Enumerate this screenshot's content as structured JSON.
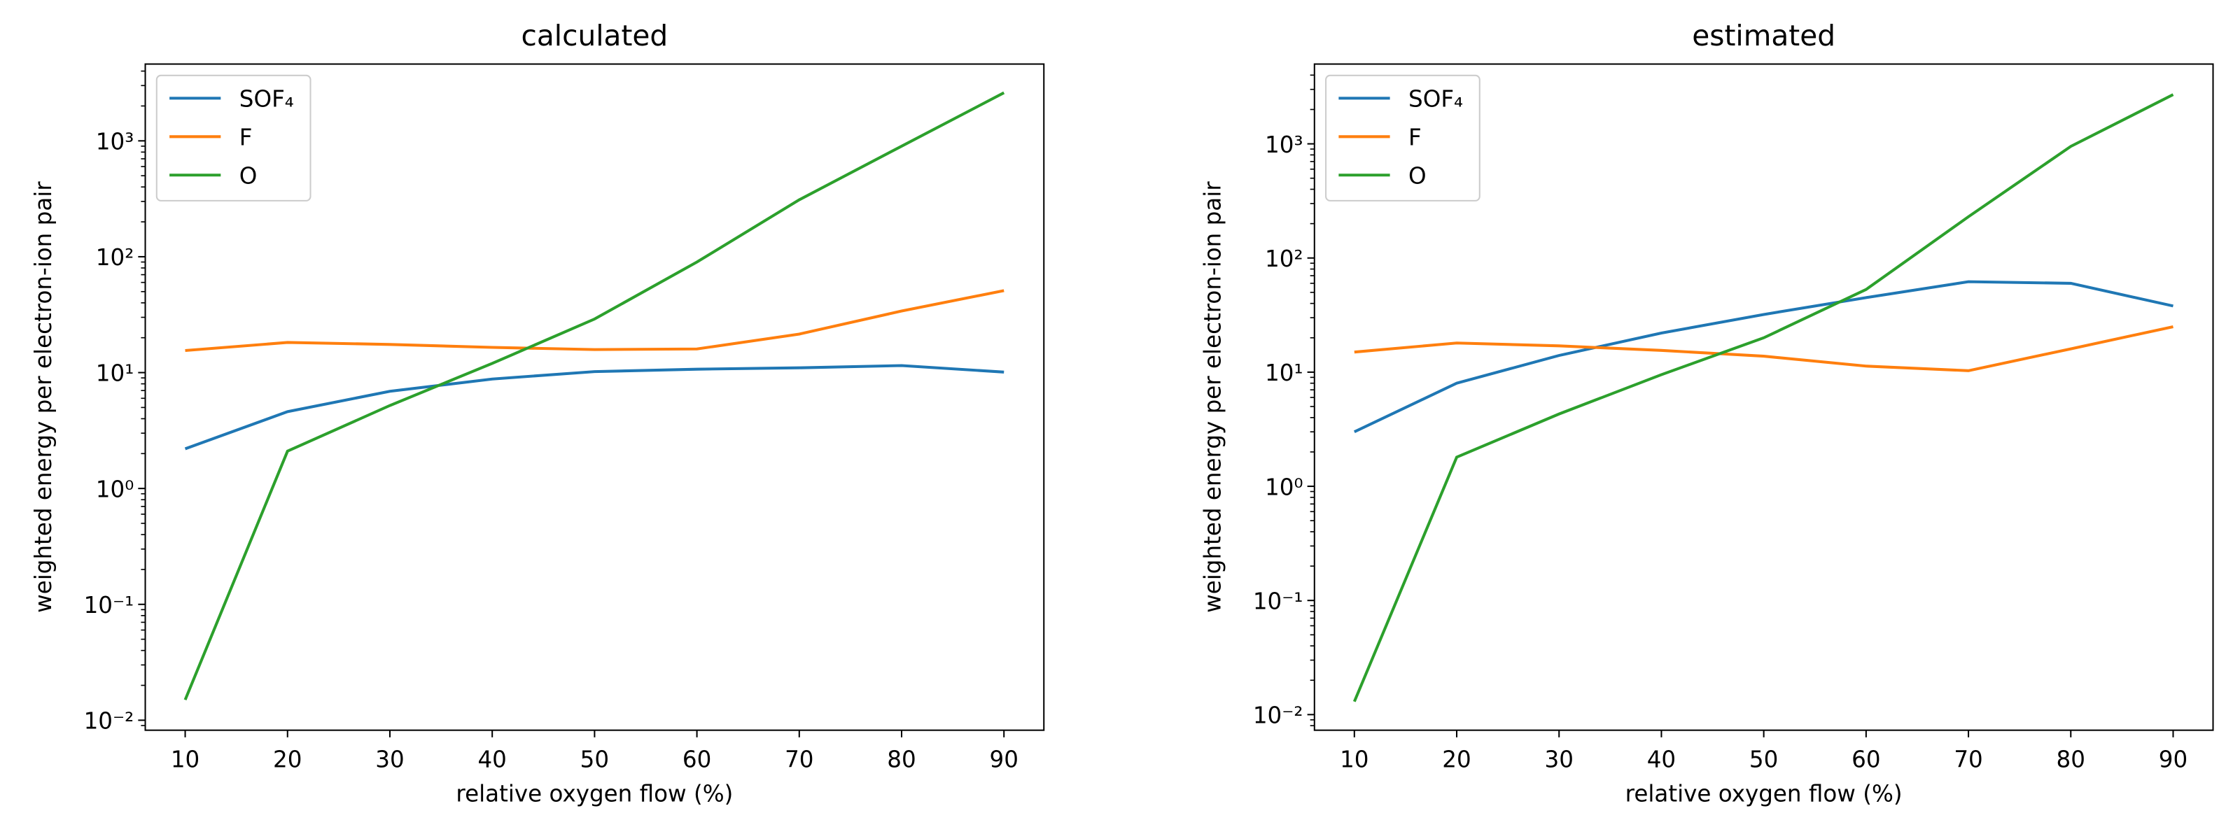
{
  "chart_data": [
    {
      "type": "line",
      "title": "calculated",
      "xlabel": "relative oxygen flow (%)",
      "ylabel": "weighted energy per electron-ion pair",
      "x": [
        10,
        20,
        30,
        40,
        50,
        60,
        70,
        80,
        90
      ],
      "series": [
        {
          "name": "SOF₄",
          "color": "#1f77b4",
          "values": [
            2.2,
            4.6,
            6.9,
            8.8,
            10.2,
            10.7,
            11,
            11.5,
            10.1
          ]
        },
        {
          "name": "F",
          "color": "#ff7f0e",
          "values": [
            15.5,
            18.2,
            17.5,
            16.5,
            15.8,
            16,
            21.5,
            34,
            51
          ]
        },
        {
          "name": "O",
          "color": "#2ca02c",
          "values": [
            0.015,
            2.1,
            5.2,
            12,
            29,
            90,
            310,
            900,
            2600
          ]
        }
      ],
      "xlim": [
        6.1,
        93.9
      ],
      "xticks": [
        10,
        20,
        30,
        40,
        50,
        60,
        70,
        80,
        90
      ],
      "ylim": [
        0.0082,
        4600
      ],
      "yscale": "log",
      "yticks": [
        {
          "value": 0.01,
          "label": "10⁻²"
        },
        {
          "value": 0.1,
          "label": "10⁻¹"
        },
        {
          "value": 1,
          "label": "10⁰"
        },
        {
          "value": 10,
          "label": "10¹"
        },
        {
          "value": 100,
          "label": "10²"
        },
        {
          "value": 1000,
          "label": "10³"
        }
      ],
      "legend": "upper left"
    },
    {
      "type": "line",
      "title": "estimated",
      "xlabel": "relative oxygen flow (%)",
      "ylabel": "weighted energy per electron-ion pair",
      "x": [
        10,
        20,
        30,
        40,
        50,
        60,
        70,
        80,
        90
      ],
      "series": [
        {
          "name": "SOF₄",
          "color": "#1f77b4",
          "values": [
            3.0,
            8.0,
            14,
            22,
            32,
            45,
            62,
            60,
            38
          ]
        },
        {
          "name": "F",
          "color": "#ff7f0e",
          "values": [
            15,
            18,
            17,
            15.5,
            13.8,
            11.3,
            10.3,
            16,
            25
          ]
        },
        {
          "name": "O",
          "color": "#2ca02c",
          "values": [
            0.013,
            1.8,
            4.3,
            9.5,
            20,
            53,
            230,
            950,
            2700
          ]
        }
      ],
      "xlim": [
        6.1,
        93.9
      ],
      "xticks": [
        10,
        20,
        30,
        40,
        50,
        60,
        70,
        80,
        90
      ],
      "ylim": [
        0.0073,
        5000
      ],
      "yscale": "log",
      "yticks": [
        {
          "value": 0.01,
          "label": "10⁻²"
        },
        {
          "value": 0.1,
          "label": "10⁻¹"
        },
        {
          "value": 1,
          "label": "10⁰"
        },
        {
          "value": 10,
          "label": "10¹"
        },
        {
          "value": 100,
          "label": "10²"
        },
        {
          "value": 1000,
          "label": "10³"
        }
      ],
      "legend": "upper left"
    }
  ]
}
